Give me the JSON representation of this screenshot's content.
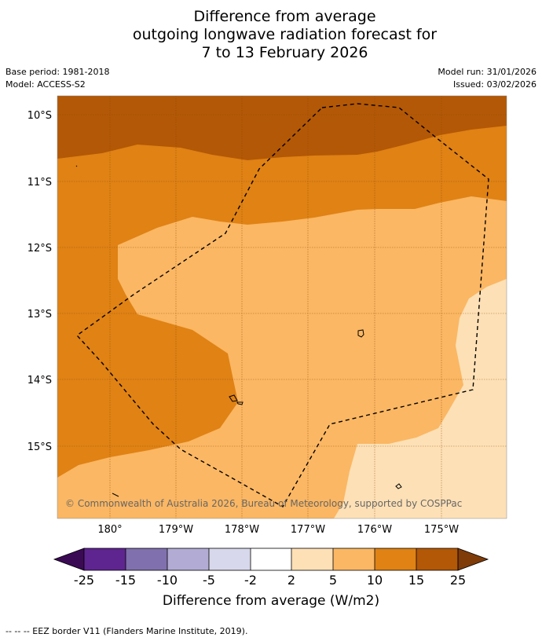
{
  "title": {
    "line1": "Difference from average",
    "line2": "outgoing longwave radiation forecast for",
    "line3": "7 to 13 February 2026"
  },
  "meta": {
    "base_period": "Base period: 1981-2018",
    "model": "Model: ACCESS-S2",
    "model_run": "Model run: 31/01/2026",
    "issued": "Issued: 03/02/2026"
  },
  "map": {
    "lat_labels": [
      "10°S",
      "11°S",
      "12°S",
      "13°S",
      "14°S",
      "15°S"
    ],
    "lon_labels": [
      "180°",
      "179°W",
      "178°W",
      "177°W",
      "176°W",
      "175°W"
    ],
    "copyright": "© Commonwealth of Australia 2026, Bureau of Meteorology, supported by COSPPac"
  },
  "colorbar": {
    "ticks": [
      "-25",
      "-15",
      "-10",
      "-5",
      "-2",
      "2",
      "5",
      "10",
      "15",
      "25"
    ],
    "label": "Difference from average (W/m2)",
    "colors": {
      "below_-25": "#3b0a55",
      "-25_-15": "#5e2590",
      "-15_-10": "#8070ad",
      "-10_-5": "#b2abd3",
      "-5_-2": "#d8d8ec",
      "-2_2": "#ffffff",
      "2_5": "#fde0b6",
      "5_10": "#fbb763",
      "10_15": "#e08214",
      "15_25": "#b35806",
      "above_25": "#7f3b08"
    }
  },
  "footer": "--  --  -- EEZ border V11 (Flanders Marine Institute, 2019)."
}
